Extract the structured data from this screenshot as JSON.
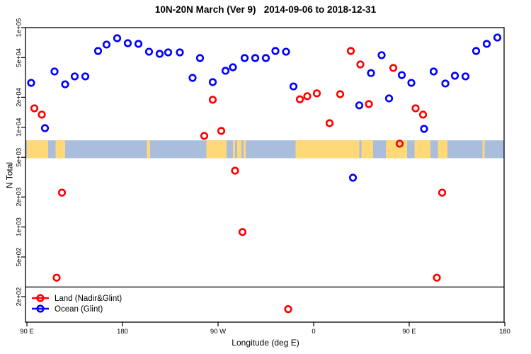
{
  "chart_data": {
    "type": "scatter",
    "title": "10N-20N March (Ver 9)   2014-09-06 to 2018-12-31",
    "xlabel": "Longitude (deg E)",
    "ylabel": "N Total",
    "x_scale": "linear",
    "y_scale": "log",
    "x_range_deg": [
      90,
      540
    ],
    "y_range": [
      110,
      105000
    ],
    "grid": false,
    "x_axis_ticks": [
      {
        "label": "90 E",
        "deg": 90
      },
      {
        "label": "180",
        "deg": 180
      },
      {
        "label": "90 W",
        "deg": 270
      },
      {
        "label": "0",
        "deg": 360
      },
      {
        "label": "90 E",
        "deg": 450
      },
      {
        "label": "180",
        "deg": 540
      }
    ],
    "y_axis_ticks": [
      {
        "label": "1e+05",
        "value": 100000
      },
      {
        "label": "5e+04",
        "value": 50000
      },
      {
        "label": "2e+04",
        "value": 20000
      },
      {
        "label": "1e+04",
        "value": 10000
      },
      {
        "label": "5e+03",
        "value": 5000
      },
      {
        "label": "2e+03",
        "value": 2000
      },
      {
        "label": "1e+03",
        "value": 1000
      },
      {
        "label": "5e+02",
        "value": 500
      },
      {
        "label": "2e+02",
        "value": 200
      }
    ],
    "hline_value": 250,
    "map_band": {
      "description": "world-map latitude strip 10N-20N drawn across plot",
      "value_top": 7400,
      "value_bottom": 4900,
      "ocean_color": "#a9bddd",
      "land_color": "#ffd977",
      "land_segments_deg": [
        [
          90,
          110
        ],
        [
          117,
          126
        ],
        [
          203,
          206
        ],
        [
          259,
          278
        ],
        [
          284,
          286
        ],
        [
          288,
          292
        ],
        [
          294,
          296
        ],
        [
          343,
          403
        ],
        [
          405,
          416
        ],
        [
          428,
          448
        ],
        [
          455,
          470
        ],
        [
          477,
          486
        ],
        [
          519,
          521
        ]
      ]
    },
    "legend": {
      "position": "bottom-left",
      "items": [
        {
          "label": "Land (Nadir&Glint)",
          "color": "#ff0000"
        },
        {
          "label": "Ocean (Glint)",
          "color": "#0000ff"
        }
      ]
    },
    "series": [
      {
        "name": "Land (Nadir&Glint)",
        "color": "#ff0000",
        "points": [
          [
            97,
            15500
          ],
          [
            104,
            13400
          ],
          [
            118,
            310
          ],
          [
            123,
            2210
          ],
          [
            257,
            8200
          ],
          [
            265,
            18900
          ],
          [
            273,
            9200
          ],
          [
            286,
            3670
          ],
          [
            293,
            890
          ],
          [
            336,
            150
          ],
          [
            347,
            19100
          ],
          [
            354,
            20500
          ],
          [
            363,
            21900
          ],
          [
            375,
            11000
          ],
          [
            385,
            21500
          ],
          [
            395,
            58300
          ],
          [
            404,
            42700
          ],
          [
            412,
            17100
          ],
          [
            435,
            39400
          ],
          [
            441,
            6850
          ],
          [
            456,
            15500
          ],
          [
            463,
            13400
          ],
          [
            476,
            310
          ],
          [
            481,
            2210
          ]
        ]
      },
      {
        "name": "Ocean (Glint)",
        "color": "#0000ff",
        "points": [
          [
            94,
            27900
          ],
          [
            107,
            9800
          ],
          [
            116,
            36300
          ],
          [
            126,
            27000
          ],
          [
            135,
            32400
          ],
          [
            145,
            32400
          ],
          [
            157,
            58300
          ],
          [
            165,
            67600
          ],
          [
            175,
            78200
          ],
          [
            185,
            69800
          ],
          [
            195,
            68700
          ],
          [
            205,
            57300
          ],
          [
            215,
            54600
          ],
          [
            223,
            56400
          ],
          [
            234,
            56400
          ],
          [
            246,
            31300
          ],
          [
            253,
            49500
          ],
          [
            265,
            28400
          ],
          [
            277,
            36900
          ],
          [
            284,
            40000
          ],
          [
            295,
            49500
          ],
          [
            305,
            49500
          ],
          [
            315,
            49500
          ],
          [
            324,
            58300
          ],
          [
            334,
            57300
          ],
          [
            341,
            25700
          ],
          [
            397,
            3120
          ],
          [
            403,
            16600
          ],
          [
            414,
            35000
          ],
          [
            424,
            52900
          ],
          [
            431,
            19500
          ],
          [
            443,
            33400
          ],
          [
            452,
            27900
          ],
          [
            464,
            9650
          ],
          [
            473,
            36300
          ],
          [
            484,
            27500
          ],
          [
            493,
            32900
          ],
          [
            503,
            32400
          ],
          [
            513,
            58300
          ],
          [
            523,
            68700
          ],
          [
            533,
            79500
          ]
        ]
      }
    ]
  }
}
